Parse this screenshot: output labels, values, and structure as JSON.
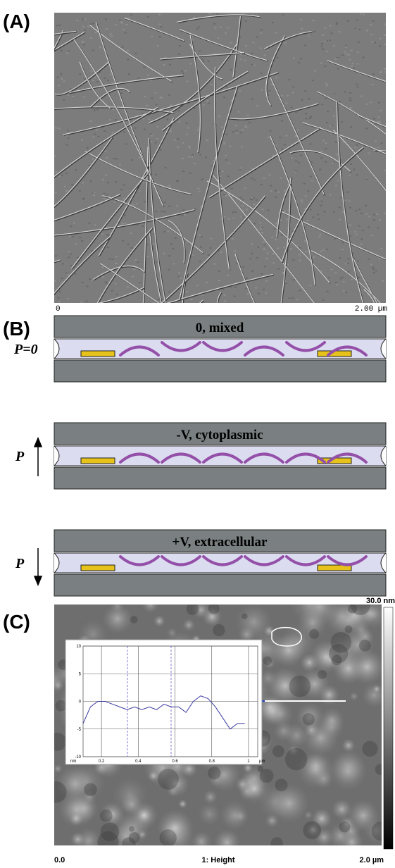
{
  "panels": {
    "a": {
      "label": "(A)",
      "scale_start": "0",
      "scale_end": "2.00 µm"
    },
    "b": {
      "label": "(B)",
      "states": [
        {
          "title": "0, mixed",
          "polarization": "P=0"
        },
        {
          "title": "-V, cytoplasmic",
          "polarization": "P"
        },
        {
          "title": "+V, extracellular",
          "polarization": "P"
        }
      ]
    },
    "c": {
      "label": "(C)",
      "colorbar_max": "30.0 nm",
      "x_start": "0.0",
      "channel": "1: Height",
      "x_end": "2.0 µm"
    }
  },
  "chart_data": {
    "type": "line",
    "x_label": "µm",
    "y_label": "nm",
    "x": [
      0.1,
      0.14,
      0.18,
      0.22,
      0.26,
      0.3,
      0.34,
      0.38,
      0.42,
      0.46,
      0.5,
      0.54,
      0.58,
      0.62,
      0.66,
      0.7,
      0.74,
      0.78,
      0.82,
      0.86,
      0.9,
      0.94,
      0.98
    ],
    "values": [
      -4,
      -1,
      0,
      0,
      -0.5,
      -1,
      -1.5,
      -1,
      -1.5,
      -1,
      -1.5,
      -0.5,
      -1,
      -1,
      -2,
      0,
      1,
      0.5,
      -1,
      -3,
      -5,
      -4,
      -4
    ],
    "color": "#3a3aa0",
    "xlim": [
      0.1,
      1.05
    ],
    "ylim": [
      -10,
      10
    ],
    "xticks": [
      0.2,
      0.4,
      0.6,
      0.8,
      1
    ],
    "yticks": [
      -10,
      -5,
      0,
      5,
      10
    ],
    "grid": true
  }
}
